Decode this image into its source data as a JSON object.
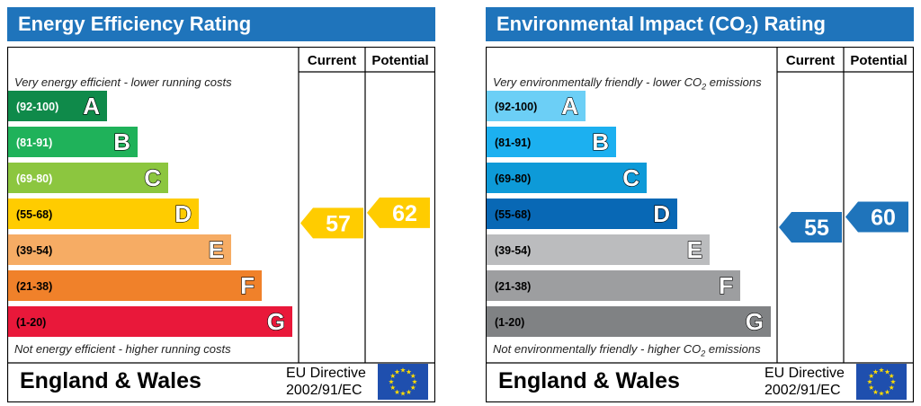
{
  "chart_data": [
    {
      "type": "bar",
      "title": "Energy Efficiency Rating",
      "columns": {
        "current": "Current",
        "potential": "Potential"
      },
      "top_caption": "Very energy efficient - lower running costs",
      "bottom_caption": "Not energy efficient - higher running costs",
      "bands": [
        {
          "range": "(92-100)",
          "letter": "A",
          "color": "#0f8a4a"
        },
        {
          "range": "(81-91)",
          "letter": "B",
          "color": "#1fb25a"
        },
        {
          "range": "(69-80)",
          "letter": "C",
          "color": "#8cc63f"
        },
        {
          "range": "(55-68)",
          "letter": "D",
          "color": "#ffcc00"
        },
        {
          "range": "(39-54)",
          "letter": "E",
          "color": "#f6ac64"
        },
        {
          "range": "(21-38)",
          "letter": "F",
          "color": "#f0812a"
        },
        {
          "range": "(1-20)",
          "letter": "G",
          "color": "#e9183a"
        }
      ],
      "current": {
        "value": 57,
        "band": "D",
        "color": "#ffcc00"
      },
      "potential": {
        "value": 62,
        "band": "D",
        "color": "#ffcc00"
      },
      "footer": {
        "region": "England & Wales",
        "directive_line1": "EU Directive",
        "directive_line2": "2002/91/EC"
      }
    },
    {
      "type": "bar",
      "title": "Environmental Impact (CO2) Rating",
      "columns": {
        "current": "Current",
        "potential": "Potential"
      },
      "top_caption": "Very environmentally friendly - lower CO2 emissions",
      "bottom_caption": "Not environmentally friendly - higher CO2 emissions",
      "bands": [
        {
          "range": "(92-100)",
          "letter": "A",
          "color": "#6ccff6"
        },
        {
          "range": "(81-91)",
          "letter": "B",
          "color": "#1cb0f0"
        },
        {
          "range": "(69-80)",
          "letter": "C",
          "color": "#0d9ad8"
        },
        {
          "range": "(55-68)",
          "letter": "D",
          "color": "#0868b5"
        },
        {
          "range": "(39-54)",
          "letter": "E",
          "color": "#bbbcbe"
        },
        {
          "range": "(21-38)",
          "letter": "F",
          "color": "#9d9ea0"
        },
        {
          "range": "(1-20)",
          "letter": "G",
          "color": "#808284"
        }
      ],
      "current": {
        "value": 55,
        "band": "D",
        "color": "#1f74bb"
      },
      "potential": {
        "value": 60,
        "band": "D",
        "color": "#1f74bb"
      },
      "footer": {
        "region": "England & Wales",
        "directive_line1": "EU Directive",
        "directive_line2": "2002/91/EC"
      }
    }
  ]
}
